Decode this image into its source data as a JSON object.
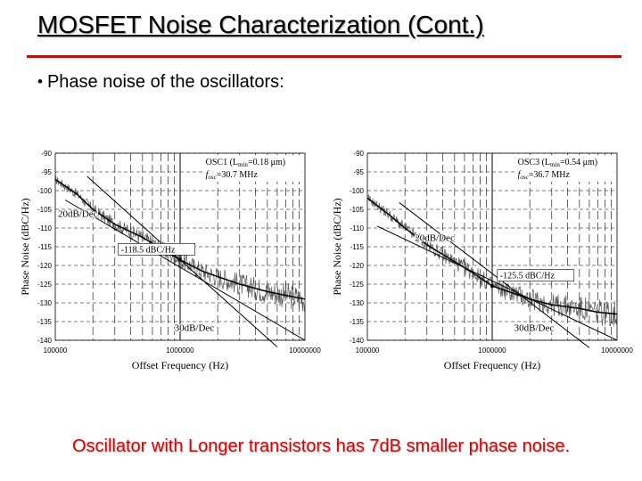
{
  "slide": {
    "title": "MOSFET Noise Characterization (Cont.)",
    "bullet": "Phase noise of the oscillators:",
    "caption": "Oscillator with Longer transistors has 7dB smaller phase noise.",
    "title_rule_color": "#e00000",
    "caption_color": "#e00000"
  },
  "chart_data": [
    {
      "type": "line",
      "xlabel": "Offset Frequency (Hz)",
      "ylabel": "Phase Noise (dBC/Hz)",
      "x_scale": "log",
      "xlim": [
        100000,
        10000000
      ],
      "ylim": [
        -140,
        -90
      ],
      "x_tick_labels": [
        "100000",
        "1000000",
        "10000000"
      ],
      "y_tick_labels": [
        "-90",
        "-95",
        "-100",
        "-105",
        "-110",
        "-115",
        "-120",
        "-125",
        "-130",
        "-135",
        "-140"
      ],
      "grid": true,
      "legend": {
        "osc_name": "OSC1",
        "lmin_label": "(L",
        "lmin_sub": "min",
        "lmin_value": "=0.18 μm)",
        "f_label": "f",
        "f_sub": "osc",
        "f_value": "=30.7 MHz"
      },
      "annotations": {
        "slope_20": "20dB/Dec",
        "slope_30": "30dB/Dec",
        "marker": "-118.5 dBC/Hz"
      },
      "marker_point": {
        "x": 1000000,
        "y": -118.5
      },
      "series": [
        {
          "values_x": [
            100000,
            150000,
            200000,
            300000,
            500000,
            700000,
            1000000,
            1500000,
            2000000,
            3000000,
            5000000,
            7000000,
            10000000
          ],
          "values_y": [
            -97,
            -101,
            -105,
            -109,
            -112.5,
            -115.5,
            -118.5,
            -121.5,
            -123,
            -125,
            -127,
            -128,
            -129
          ]
        }
      ]
    },
    {
      "type": "line",
      "xlabel": "Offset Frequency (Hz)",
      "ylabel": "Phase Noise (dBC/Hz)",
      "x_scale": "log",
      "xlim": [
        100000,
        10000000
      ],
      "ylim": [
        -140,
        -90
      ],
      "x_tick_labels": [
        "100000",
        "1000000",
        "10000000"
      ],
      "y_tick_labels": [
        "-90",
        "-95",
        "-100",
        "-105",
        "-110",
        "-115",
        "-120",
        "-125",
        "-130",
        "-135",
        "-140"
      ],
      "grid": true,
      "legend": {
        "osc_name": "OSC3",
        "lmin_label": "(L",
        "lmin_sub": "min",
        "lmin_value": "=0.54 μm)",
        "f_label": "f",
        "f_sub": "osc",
        "f_value": "=36.7 MHz"
      },
      "annotations": {
        "slope_20": "20dB/Dec",
        "slope_30": "30dB/Dec",
        "marker": "-125.5 dBC/Hz"
      },
      "marker_point": {
        "x": 1000000,
        "y": -125.5
      },
      "series": [
        {
          "values_x": [
            100000,
            150000,
            200000,
            300000,
            500000,
            700000,
            1000000,
            1500000,
            2000000,
            3000000,
            5000000,
            7000000,
            10000000
          ],
          "values_y": [
            -102,
            -106.5,
            -110,
            -114.5,
            -119,
            -122,
            -125.5,
            -127.5,
            -129,
            -130.5,
            -131.5,
            -132.5,
            -133
          ]
        }
      ]
    }
  ]
}
